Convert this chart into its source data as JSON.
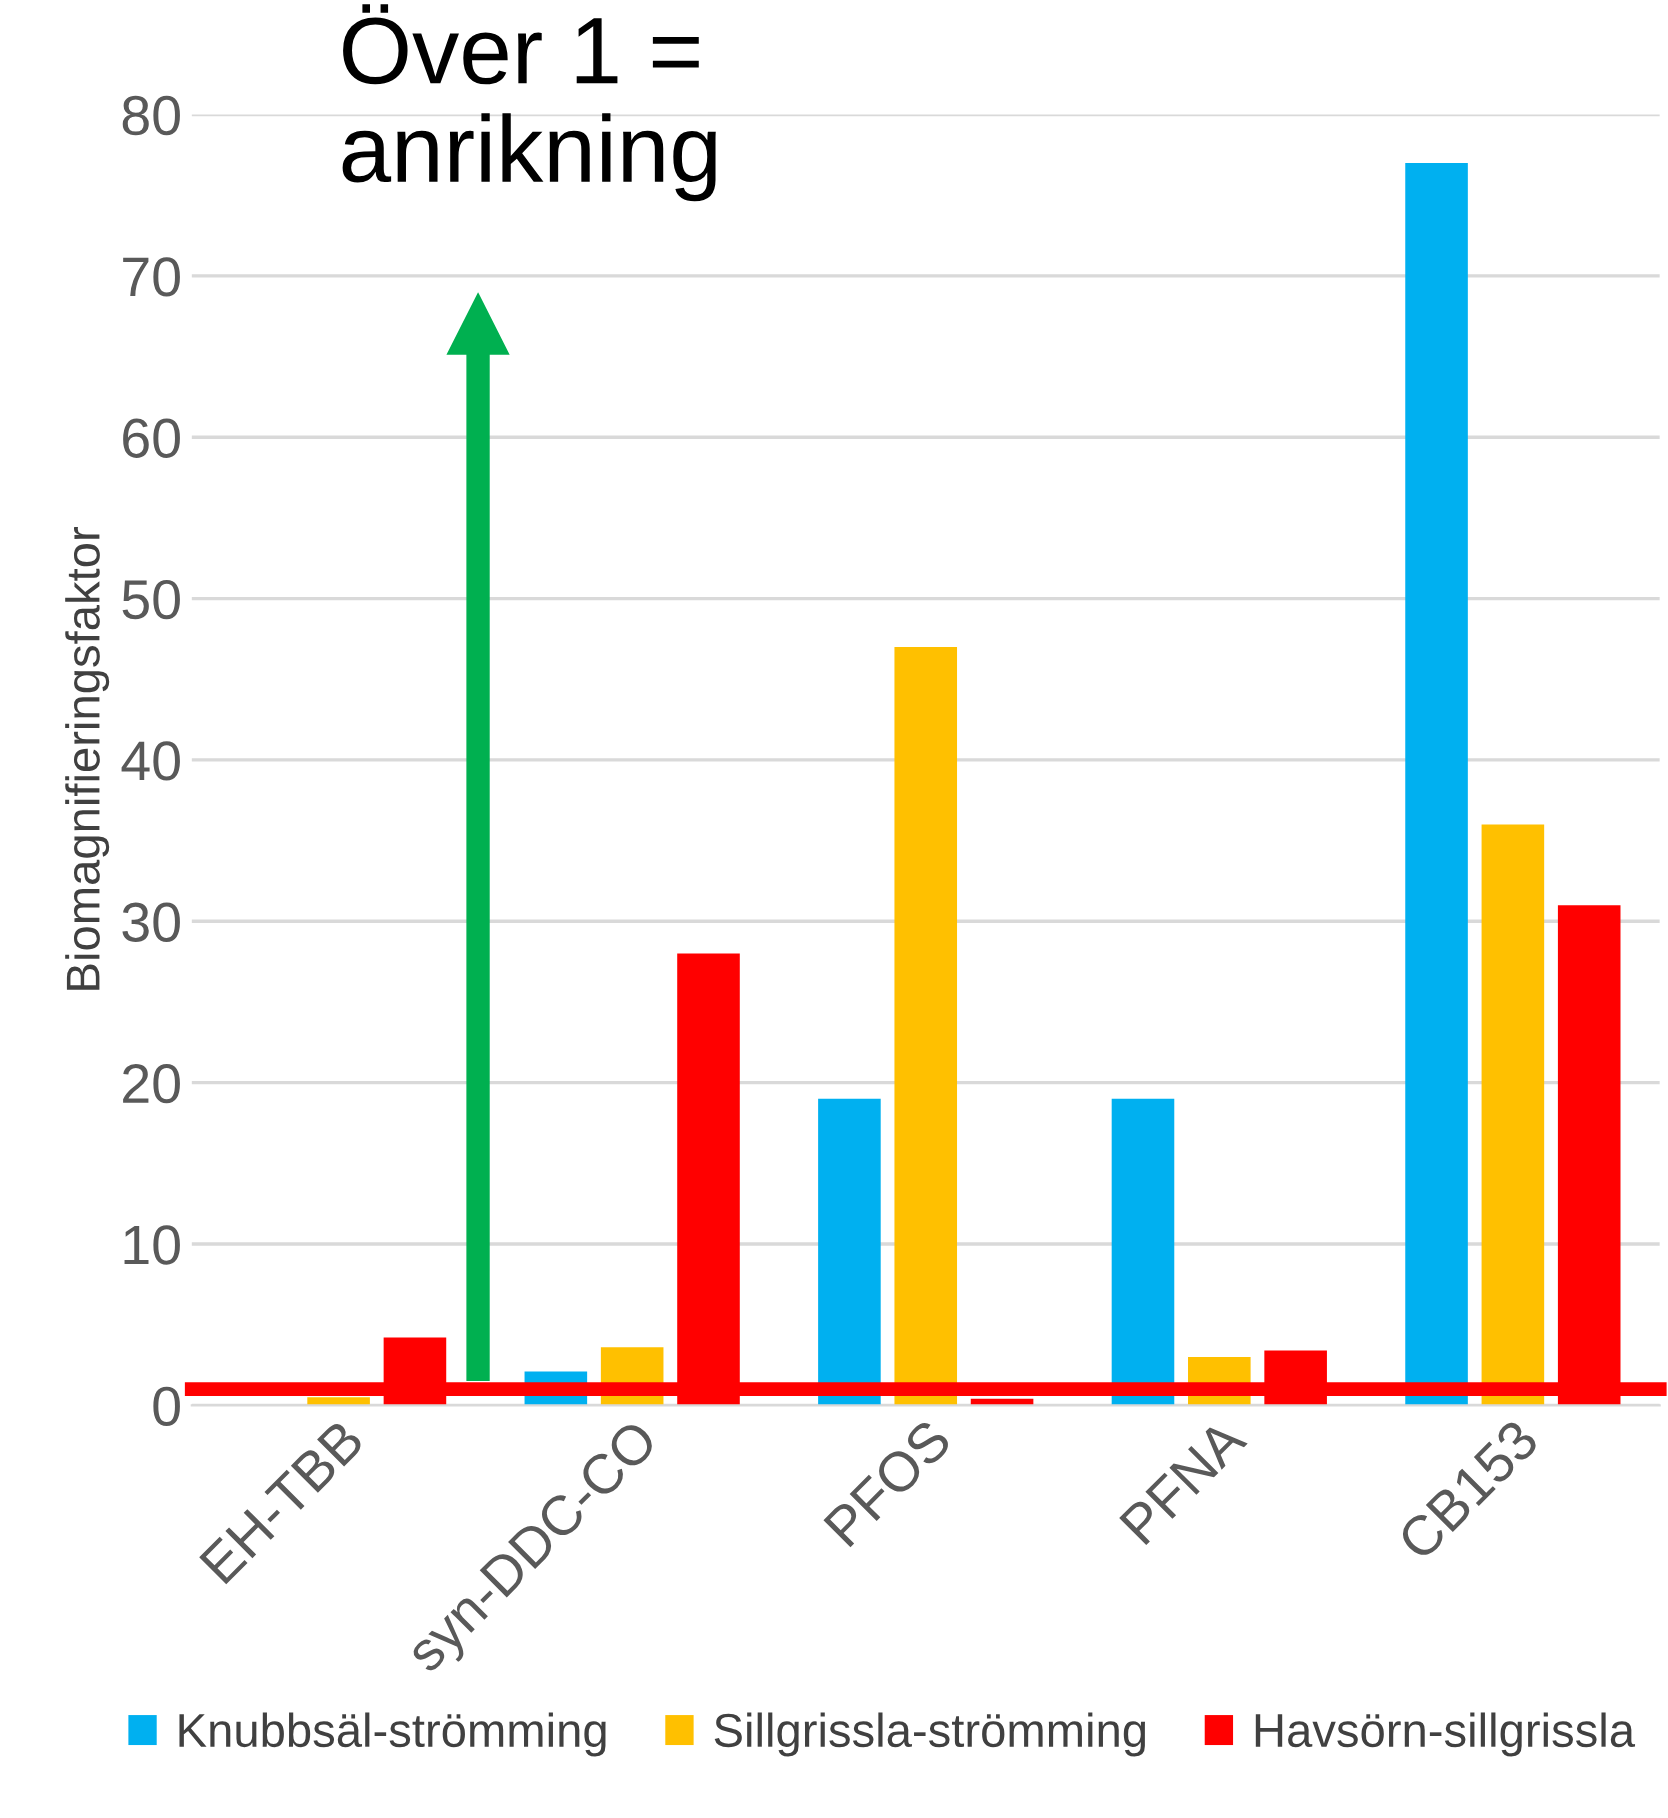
{
  "chart_data": {
    "type": "bar",
    "ylabel": "Biomagnifieringsfaktor",
    "categories": [
      "EH-TBB",
      "syn-DDC-CO",
      "PFOS",
      "PFNA",
      "CB153"
    ],
    "series": [
      {
        "name": "Knubbsäl-strömming",
        "color": "#00b0f0",
        "values": [
          null,
          2.1,
          19,
          19,
          77
        ]
      },
      {
        "name": "Sillgrissla-strömming",
        "color": "#ffc000",
        "values": [
          0.5,
          3.6,
          47,
          3.0,
          36
        ]
      },
      {
        "name": "Havsörn-sillgrissla",
        "color": "#ff0000",
        "values": [
          4.2,
          28,
          0.4,
          3.4,
          31
        ]
      }
    ],
    "ylim": [
      0,
      80
    ],
    "yticks": [
      0,
      10,
      20,
      30,
      40,
      50,
      60,
      70,
      80
    ],
    "grid": "y",
    "legend": "bottom",
    "ref_lines": [
      {
        "axis": "y",
        "value": 1,
        "color": "#ff0000"
      }
    ],
    "annotations": [
      "Över 1 =\nanrikning"
    ]
  }
}
